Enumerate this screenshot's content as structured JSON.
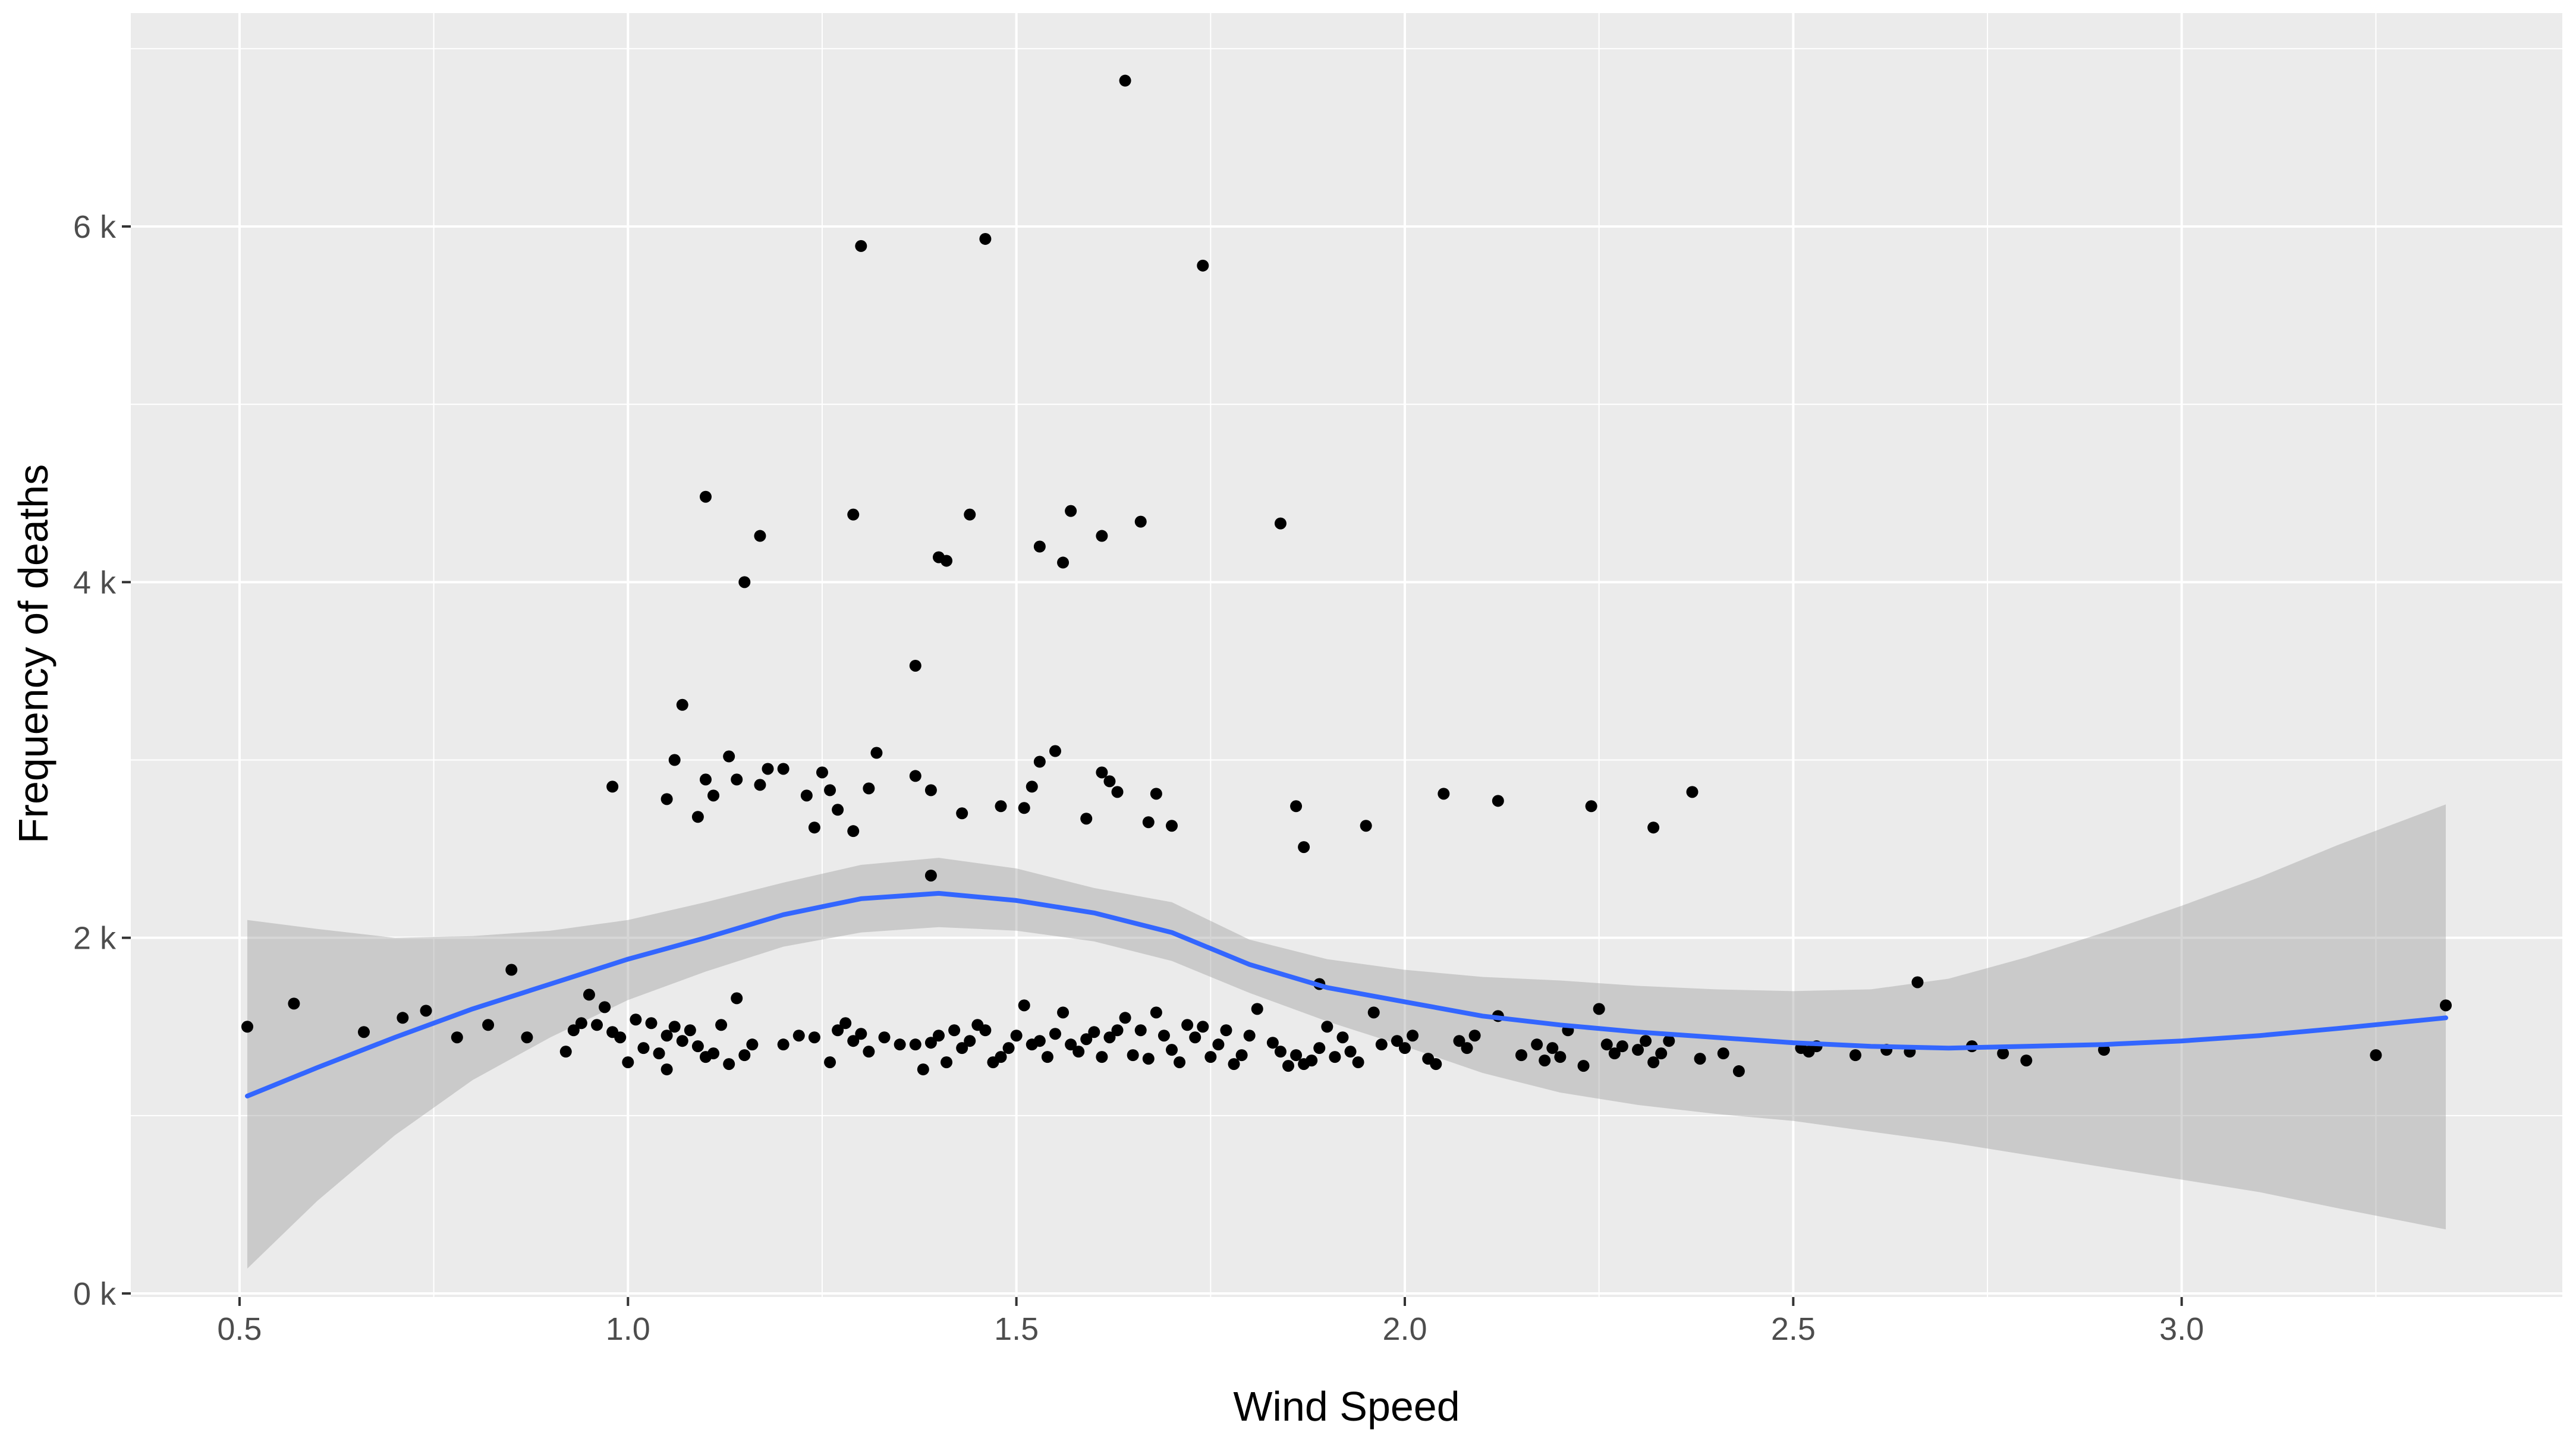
{
  "chart_data": {
    "type": "scatter",
    "title": "",
    "xlabel": "Wind Speed",
    "ylabel": "Frequency of deaths",
    "xlim": [
      0.36,
      3.49
    ],
    "ylim": [
      -20,
      7200
    ],
    "x_ticks": [
      0.5,
      1.0,
      1.5,
      2.0,
      2.5,
      3.0
    ],
    "x_tick_labels": [
      "0.5",
      "1.0",
      "1.5",
      "2.0",
      "2.5",
      "3.0"
    ],
    "y_ticks": [
      0,
      2000,
      4000,
      6000
    ],
    "y_tick_labels": [
      "0 k",
      "2 k",
      "4 k",
      "6 k"
    ],
    "grid": true,
    "legend": "none",
    "colors": {
      "panel": "#ebebeb",
      "grid": "#ffffff",
      "points": "#000000",
      "smooth_line": "#3366ff",
      "ribbon": "#999999"
    },
    "points": [
      [
        0.51,
        1500
      ],
      [
        0.57,
        1630
      ],
      [
        0.66,
        1470
      ],
      [
        0.71,
        1550
      ],
      [
        0.74,
        1590
      ],
      [
        0.78,
        1440
      ],
      [
        0.82,
        1510
      ],
      [
        0.85,
        1820
      ],
      [
        0.87,
        1440
      ],
      [
        0.92,
        1360
      ],
      [
        0.93,
        1480
      ],
      [
        0.94,
        1520
      ],
      [
        0.95,
        1680
      ],
      [
        0.96,
        1510
      ],
      [
        0.97,
        1610
      ],
      [
        0.98,
        1470
      ],
      [
        0.99,
        1440
      ],
      [
        1.0,
        1300
      ],
      [
        1.01,
        1540
      ],
      [
        1.02,
        1380
      ],
      [
        1.03,
        1520
      ],
      [
        1.04,
        1350
      ],
      [
        1.05,
        1450
      ],
      [
        1.05,
        1260
      ],
      [
        1.06,
        1500
      ],
      [
        1.07,
        1420
      ],
      [
        1.08,
        1480
      ],
      [
        1.09,
        1390
      ],
      [
        1.1,
        1330
      ],
      [
        1.11,
        1350
      ],
      [
        1.12,
        1510
      ],
      [
        1.13,
        1290
      ],
      [
        1.14,
        1660
      ],
      [
        1.15,
        1340
      ],
      [
        1.16,
        1400
      ],
      [
        1.2,
        1400
      ],
      [
        1.22,
        1450
      ],
      [
        1.24,
        1440
      ],
      [
        1.26,
        1300
      ],
      [
        1.27,
        1480
      ],
      [
        1.28,
        1520
      ],
      [
        1.29,
        1420
      ],
      [
        1.3,
        1460
      ],
      [
        1.31,
        1360
      ],
      [
        1.33,
        1440
      ],
      [
        1.35,
        1400
      ],
      [
        1.37,
        1400
      ],
      [
        1.38,
        1260
      ],
      [
        1.39,
        1410
      ],
      [
        1.4,
        1450
      ],
      [
        1.41,
        1300
      ],
      [
        1.42,
        1480
      ],
      [
        1.43,
        1380
      ],
      [
        1.44,
        1420
      ],
      [
        1.45,
        1510
      ],
      [
        1.46,
        1480
      ],
      [
        1.47,
        1300
      ],
      [
        1.48,
        1330
      ],
      [
        1.49,
        1380
      ],
      [
        1.5,
        1450
      ],
      [
        1.51,
        1620
      ],
      [
        1.52,
        1400
      ],
      [
        1.53,
        1420
      ],
      [
        1.54,
        1330
      ],
      [
        1.55,
        1460
      ],
      [
        1.56,
        1580
      ],
      [
        1.57,
        1400
      ],
      [
        1.58,
        1360
      ],
      [
        1.59,
        1430
      ],
      [
        1.6,
        1470
      ],
      [
        1.61,
        1330
      ],
      [
        1.62,
        1440
      ],
      [
        1.63,
        1480
      ],
      [
        1.64,
        1550
      ],
      [
        1.65,
        1340
      ],
      [
        1.66,
        1480
      ],
      [
        1.67,
        1320
      ],
      [
        1.68,
        1580
      ],
      [
        1.69,
        1450
      ],
      [
        1.7,
        1370
      ],
      [
        1.71,
        1300
      ],
      [
        1.72,
        1510
      ],
      [
        1.73,
        1440
      ],
      [
        1.74,
        1500
      ],
      [
        1.75,
        1330
      ],
      [
        1.76,
        1400
      ],
      [
        1.77,
        1480
      ],
      [
        1.78,
        1290
      ],
      [
        1.79,
        1340
      ],
      [
        1.8,
        1450
      ],
      [
        1.81,
        1600
      ],
      [
        1.83,
        1410
      ],
      [
        1.84,
        1360
      ],
      [
        1.85,
        1280
      ],
      [
        1.86,
        1340
      ],
      [
        1.87,
        1290
      ],
      [
        1.88,
        1310
      ],
      [
        1.89,
        1380
      ],
      [
        1.9,
        1500
      ],
      [
        1.91,
        1330
      ],
      [
        1.92,
        1440
      ],
      [
        1.93,
        1360
      ],
      [
        1.94,
        1300
      ],
      [
        1.96,
        1580
      ],
      [
        1.97,
        1400
      ],
      [
        1.99,
        1420
      ],
      [
        2.0,
        1380
      ],
      [
        2.01,
        1450
      ],
      [
        2.03,
        1320
      ],
      [
        2.04,
        1290
      ],
      [
        2.07,
        1420
      ],
      [
        2.08,
        1380
      ],
      [
        2.09,
        1450
      ],
      [
        2.12,
        1560
      ],
      [
        2.15,
        1340
      ],
      [
        2.17,
        1400
      ],
      [
        2.18,
        1310
      ],
      [
        2.19,
        1380
      ],
      [
        2.2,
        1330
      ],
      [
        2.21,
        1480
      ],
      [
        2.23,
        1280
      ],
      [
        2.25,
        1600
      ],
      [
        2.26,
        1400
      ],
      [
        2.27,
        1350
      ],
      [
        2.28,
        1390
      ],
      [
        2.3,
        1370
      ],
      [
        2.31,
        1420
      ],
      [
        2.32,
        1300
      ],
      [
        2.33,
        1350
      ],
      [
        2.34,
        1420
      ],
      [
        2.38,
        1320
      ],
      [
        2.41,
        1350
      ],
      [
        2.43,
        1250
      ],
      [
        2.51,
        1380
      ],
      [
        2.52,
        1360
      ],
      [
        2.53,
        1390
      ],
      [
        2.58,
        1340
      ],
      [
        2.62,
        1370
      ],
      [
        2.65,
        1360
      ],
      [
        2.73,
        1390
      ],
      [
        2.77,
        1350
      ],
      [
        2.8,
        1310
      ],
      [
        2.9,
        1370
      ],
      [
        3.25,
        1340
      ],
      [
        3.34,
        1620
      ],
      [
        0.98,
        2850
      ],
      [
        1.05,
        2780
      ],
      [
        1.06,
        3000
      ],
      [
        1.07,
        3310
      ],
      [
        1.09,
        2680
      ],
      [
        1.1,
        2890
      ],
      [
        1.11,
        2800
      ],
      [
        1.13,
        3020
      ],
      [
        1.14,
        2890
      ],
      [
        1.17,
        2860
      ],
      [
        1.18,
        2950
      ],
      [
        1.2,
        2950
      ],
      [
        1.23,
        2800
      ],
      [
        1.24,
        2620
      ],
      [
        1.25,
        2930
      ],
      [
        1.26,
        2830
      ],
      [
        1.27,
        2720
      ],
      [
        1.29,
        2600
      ],
      [
        1.31,
        2840
      ],
      [
        1.32,
        3040
      ],
      [
        1.37,
        2910
      ],
      [
        1.39,
        2830
      ],
      [
        1.43,
        2700
      ],
      [
        1.48,
        2740
      ],
      [
        1.51,
        2730
      ],
      [
        1.52,
        2850
      ],
      [
        1.53,
        2990
      ],
      [
        1.55,
        3050
      ],
      [
        1.59,
        2670
      ],
      [
        1.61,
        2930
      ],
      [
        1.62,
        2880
      ],
      [
        1.63,
        2820
      ],
      [
        1.67,
        2650
      ],
      [
        1.68,
        2810
      ],
      [
        1.7,
        2630
      ],
      [
        1.86,
        2740
      ],
      [
        1.87,
        2510
      ],
      [
        1.95,
        2630
      ],
      [
        2.05,
        2810
      ],
      [
        2.12,
        2770
      ],
      [
        2.24,
        2740
      ],
      [
        2.32,
        2620
      ],
      [
        2.37,
        2820
      ],
      [
        1.39,
        2350
      ],
      [
        1.89,
        1740
      ],
      [
        2.66,
        1750
      ],
      [
        1.1,
        4480
      ],
      [
        1.15,
        4000
      ],
      [
        1.17,
        4260
      ],
      [
        1.29,
        4380
      ],
      [
        1.4,
        4140
      ],
      [
        1.41,
        4120
      ],
      [
        1.44,
        4380
      ],
      [
        1.53,
        4200
      ],
      [
        1.56,
        4110
      ],
      [
        1.57,
        4400
      ],
      [
        1.61,
        4260
      ],
      [
        1.66,
        4340
      ],
      [
        1.84,
        4330
      ],
      [
        1.37,
        3530
      ],
      [
        1.3,
        5890
      ],
      [
        1.46,
        5930
      ],
      [
        1.74,
        5780
      ],
      [
        1.64,
        6820
      ]
    ],
    "smooth": {
      "x": [
        0.51,
        0.6,
        0.7,
        0.8,
        0.9,
        1.0,
        1.1,
        1.2,
        1.3,
        1.4,
        1.5,
        1.6,
        1.7,
        1.8,
        1.9,
        2.0,
        2.1,
        2.2,
        2.3,
        2.4,
        2.5,
        2.6,
        2.7,
        2.8,
        2.9,
        3.0,
        3.1,
        3.2,
        3.34
      ],
      "y": [
        1110,
        1270,
        1440,
        1600,
        1740,
        1880,
        2000,
        2130,
        2220,
        2250,
        2210,
        2140,
        2030,
        1850,
        1720,
        1640,
        1560,
        1510,
        1470,
        1440,
        1410,
        1390,
        1380,
        1390,
        1400,
        1420,
        1450,
        1490,
        1550
      ],
      "lower": [
        140,
        520,
        890,
        1200,
        1440,
        1650,
        1810,
        1950,
        2030,
        2060,
        2040,
        1980,
        1870,
        1690,
        1530,
        1390,
        1240,
        1130,
        1060,
        1010,
        970,
        910,
        850,
        780,
        710,
        640,
        570,
        480,
        360
      ],
      "upper": [
        2100,
        2050,
        2000,
        2010,
        2040,
        2100,
        2200,
        2310,
        2410,
        2450,
        2390,
        2280,
        2200,
        1990,
        1880,
        1820,
        1780,
        1760,
        1730,
        1710,
        1700,
        1710,
        1770,
        1890,
        2030,
        2180,
        2340,
        2520,
        2750
      ]
    }
  }
}
